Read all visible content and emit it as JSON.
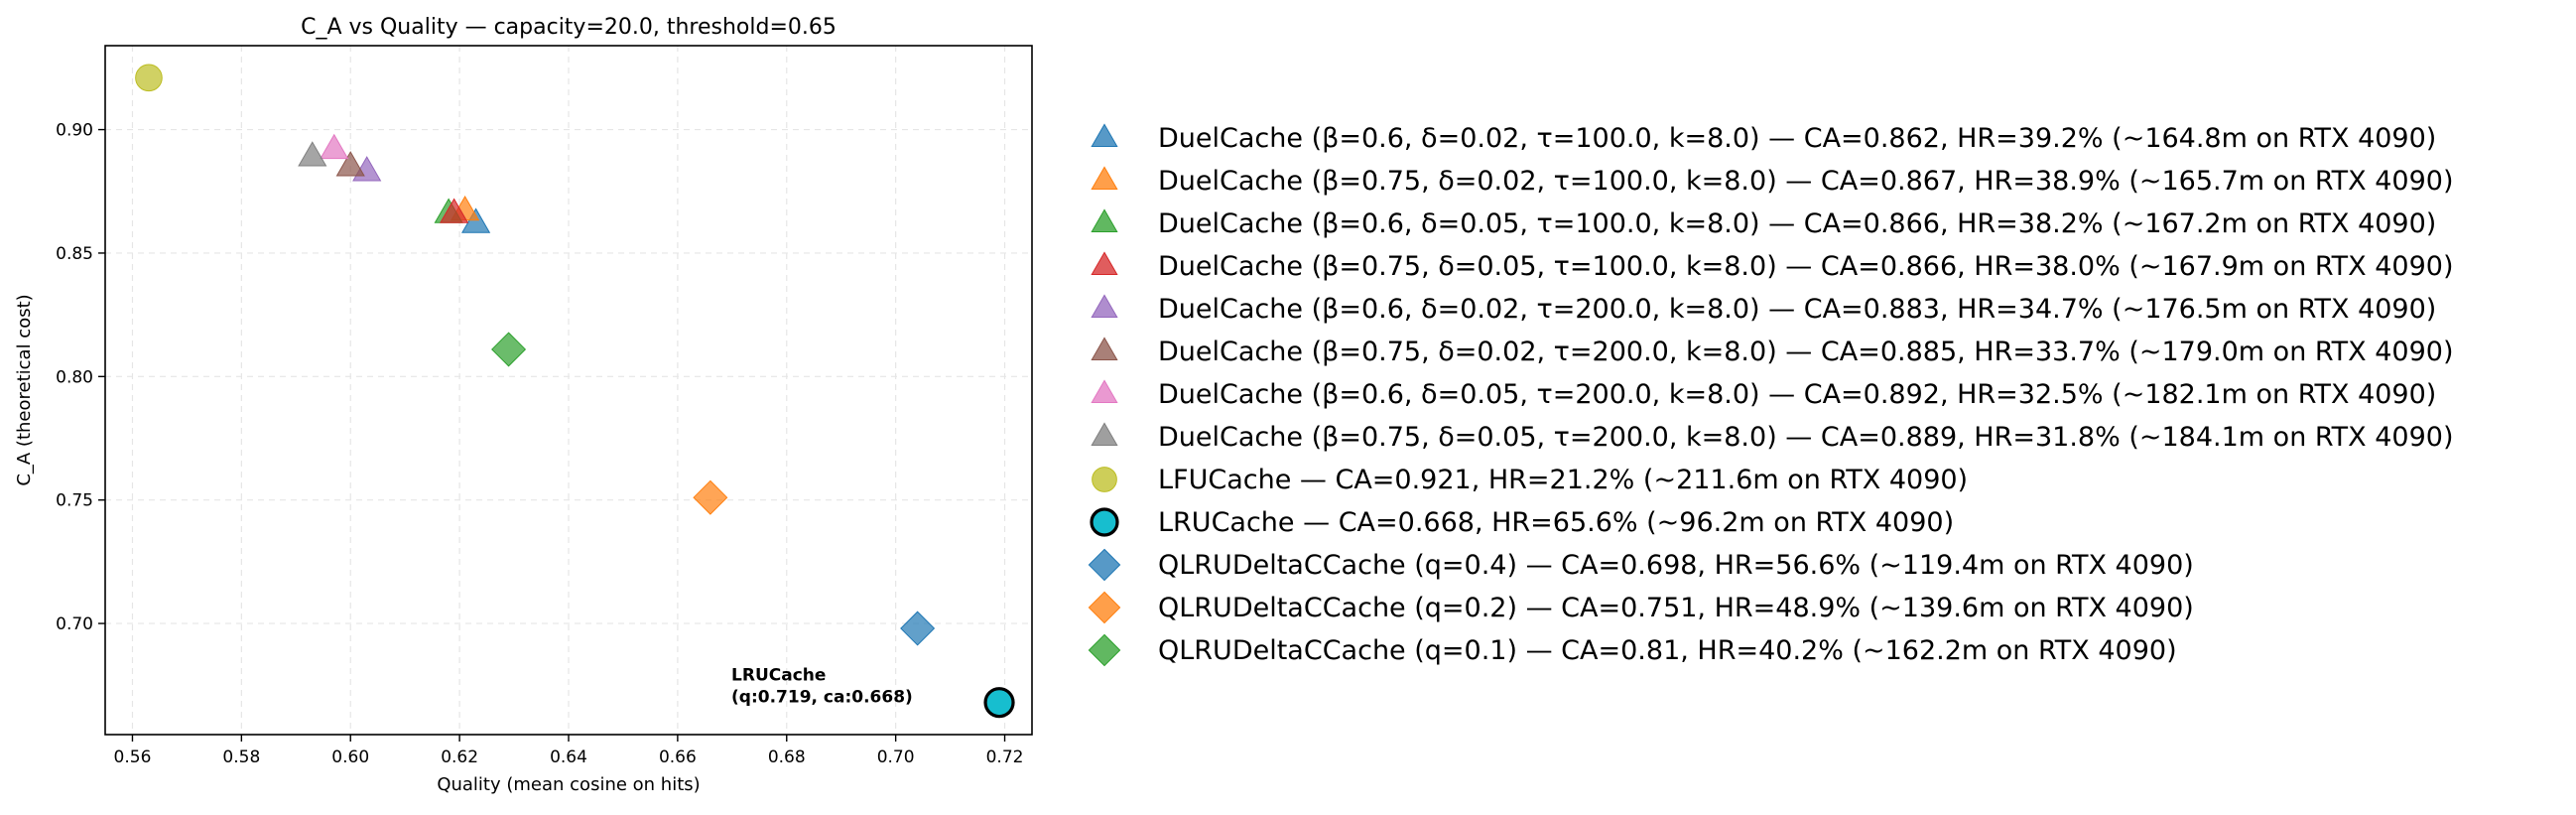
{
  "chart_data": {
    "type": "scatter",
    "title": "C_A vs Quality — capacity=20.0, threshold=0.65",
    "xlabel": "Quality (mean cosine on hits)",
    "ylabel": "C_A (theoretical cost)",
    "xlim": [
      0.555,
      0.725
    ],
    "ylim": [
      0.655,
      0.934
    ],
    "x_ticks": [
      0.56,
      0.58,
      0.6,
      0.62,
      0.64,
      0.66,
      0.68,
      0.7,
      0.72
    ],
    "x_tick_labels": [
      "0.56",
      "0.58",
      "0.60",
      "0.62",
      "0.64",
      "0.66",
      "0.68",
      "0.70",
      "0.72"
    ],
    "y_ticks": [
      0.7,
      0.75,
      0.8,
      0.85,
      0.9
    ],
    "y_tick_labels": [
      "0.70",
      "0.75",
      "0.80",
      "0.85",
      "0.90"
    ],
    "grid": true,
    "legend_placement": "outside-right",
    "annotation": {
      "lines": [
        "LRUCache",
        "(q:0.719, ca:0.668)"
      ],
      "x": 0.719,
      "y": 0.668
    },
    "series": [
      {
        "name": "DuelCache (β=0.6, δ=0.02, τ=100.0, k=8.0) — CA=0.862, HR=39.2% (~164.8m on RTX 4090)",
        "marker": "triangle",
        "color": "#1f77b4",
        "x": 0.623,
        "y": 0.862
      },
      {
        "name": "DuelCache (β=0.75, δ=0.02, τ=100.0, k=8.0) — CA=0.867, HR=38.9% (~165.7m on RTX 4090)",
        "marker": "triangle",
        "color": "#ff7f0e",
        "x": 0.621,
        "y": 0.867
      },
      {
        "name": "DuelCache (β=0.6, δ=0.05, τ=100.0, k=8.0) — CA=0.866, HR=38.2% (~167.2m on RTX 4090)",
        "marker": "triangle",
        "color": "#2ca02c",
        "x": 0.618,
        "y": 0.866
      },
      {
        "name": "DuelCache (β=0.75, δ=0.05, τ=100.0, k=8.0) — CA=0.866, HR=38.0% (~167.9m on RTX 4090)",
        "marker": "triangle",
        "color": "#d62728",
        "x": 0.619,
        "y": 0.866
      },
      {
        "name": "DuelCache (β=0.6, δ=0.02, τ=200.0, k=8.0) — CA=0.883, HR=34.7% (~176.5m on RTX 4090)",
        "marker": "triangle",
        "color": "#9467bd",
        "x": 0.603,
        "y": 0.883
      },
      {
        "name": "DuelCache (β=0.75, δ=0.02, τ=200.0, k=8.0) — CA=0.885, HR=33.7% (~179.0m on RTX 4090)",
        "marker": "triangle",
        "color": "#8c564b",
        "x": 0.6,
        "y": 0.885
      },
      {
        "name": "DuelCache (β=0.6, δ=0.05, τ=200.0, k=8.0) — CA=0.892, HR=32.5% (~182.1m on RTX 4090)",
        "marker": "triangle",
        "color": "#e377c2",
        "x": 0.597,
        "y": 0.892
      },
      {
        "name": "DuelCache (β=0.75, δ=0.05, τ=200.0, k=8.0) — CA=0.889, HR=31.8% (~184.1m on RTX 4090)",
        "marker": "triangle",
        "color": "#7f7f7f",
        "x": 0.593,
        "y": 0.889
      },
      {
        "name": "LFUCache — CA=0.921, HR=21.2% (~211.6m on RTX 4090)",
        "marker": "circle",
        "color": "#bcbd22",
        "x": 0.563,
        "y": 0.921
      },
      {
        "name": "LRUCache — CA=0.668, HR=65.6% (~96.2m on RTX 4090)",
        "marker": "circle-outlined",
        "color": "#17becf",
        "x": 0.719,
        "y": 0.668
      },
      {
        "name": "QLRUDeltaCCache (q=0.4) — CA=0.698, HR=56.6% (~119.4m on RTX 4090)",
        "marker": "diamond",
        "color": "#1f77b4",
        "x": 0.704,
        "y": 0.698
      },
      {
        "name": "QLRUDeltaCCache (q=0.2) — CA=0.751, HR=48.9% (~139.6m on RTX 4090)",
        "marker": "diamond",
        "color": "#ff7f0e",
        "x": 0.666,
        "y": 0.751
      },
      {
        "name": "QLRUDeltaCCache (q=0.1) — CA=0.81, HR=40.2% (~162.2m on RTX 4090)",
        "marker": "diamond",
        "color": "#2ca02c",
        "x": 0.629,
        "y": 0.811
      }
    ]
  }
}
